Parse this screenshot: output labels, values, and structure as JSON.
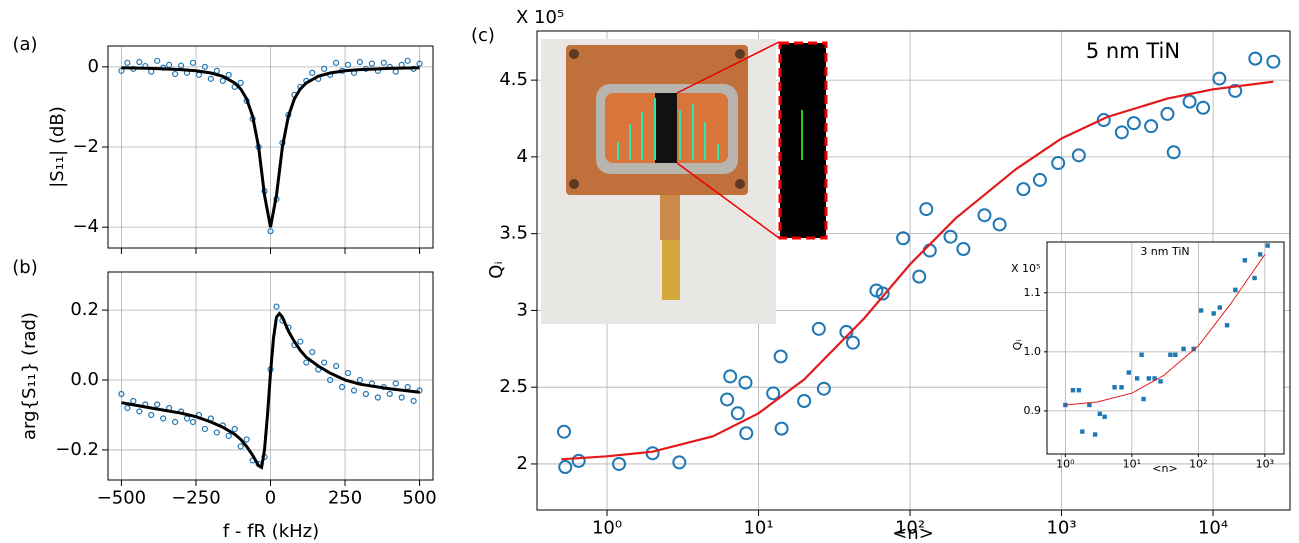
{
  "chart_data": [
    {
      "type": "scatter",
      "panel_label": "(a)",
      "ylabel": "|S₁₁| (dB)",
      "grid": true,
      "log_x": false,
      "show_xtick_labels": false,
      "xlim": [
        -545,
        545
      ],
      "ylim": [
        -4.52,
        0.52
      ],
      "xticks": [
        -500,
        -250,
        0,
        250,
        500
      ],
      "yticks": [
        {
          "value": -4,
          "label": "−4"
        },
        {
          "value": -2,
          "label": "−2"
        },
        0
      ],
      "series": [
        {
          "style": "markers",
          "color": "#1f77b4",
          "x": [
            -500,
            -480,
            -460,
            -440,
            -420,
            -400,
            -380,
            -360,
            -340,
            -320,
            -300,
            -280,
            -260,
            -240,
            -220,
            -200,
            -180,
            -160,
            -140,
            -120,
            -100,
            -80,
            -60,
            -40,
            -20,
            0,
            20,
            40,
            60,
            80,
            100,
            120,
            140,
            160,
            180,
            200,
            220,
            240,
            260,
            280,
            300,
            320,
            340,
            360,
            380,
            400,
            420,
            440,
            460,
            480,
            500
          ],
          "values": [
            -0.1,
            0.1,
            -0.05,
            0.12,
            0.02,
            -0.12,
            0.15,
            -0.02,
            0.05,
            -0.18,
            0.03,
            -0.15,
            0.1,
            -0.2,
            0.0,
            -0.3,
            -0.1,
            -0.35,
            -0.2,
            -0.5,
            -0.4,
            -0.85,
            -1.3,
            -2.0,
            -3.1,
            -4.1,
            -3.3,
            -1.9,
            -1.2,
            -0.7,
            -0.5,
            -0.35,
            -0.15,
            -0.3,
            -0.05,
            -0.2,
            0.1,
            -0.1,
            0.05,
            -0.15,
            0.12,
            -0.05,
            0.08,
            -0.1,
            0.1,
            0.0,
            -0.12,
            0.05,
            0.15,
            -0.05,
            0.08
          ]
        },
        {
          "style": "line",
          "color": "#000000",
          "x": [
            -500,
            -400,
            -300,
            -250,
            -200,
            -160,
            -120,
            -100,
            -80,
            -60,
            -40,
            -20,
            0,
            20,
            40,
            60,
            80,
            100,
            120,
            160,
            200,
            250,
            300,
            400,
            500
          ],
          "values": [
            -0.025,
            -0.04,
            -0.07,
            -0.1,
            -0.154,
            -0.235,
            -0.4,
            -0.55,
            -0.8,
            -1.23,
            -2.0,
            -3.2,
            -4.0,
            -3.2,
            -2.0,
            -1.23,
            -0.8,
            -0.55,
            -0.4,
            -0.235,
            -0.154,
            -0.1,
            -0.07,
            -0.04,
            -0.025
          ]
        }
      ]
    },
    {
      "type": "scatter",
      "panel_label": "(b)",
      "ylabel": "arg{S₁₁} (rad)",
      "xlabel": "f - fR (kHz)",
      "grid": true,
      "log_x": false,
      "xlim": [
        -545,
        545
      ],
      "ylim": [
        -0.286,
        0.309
      ],
      "xticks": [
        {
          "value": -500,
          "label": "−500"
        },
        {
          "value": -250,
          "label": "−250"
        },
        0,
        250,
        500
      ],
      "yticks": [
        {
          "value": -0.2,
          "label": "−0.2"
        },
        {
          "value": 0,
          "label": "0.0"
        },
        0.2
      ],
      "series": [
        {
          "style": "markers",
          "color": "#1f77b4",
          "x": [
            -500,
            -480,
            -460,
            -440,
            -420,
            -400,
            -380,
            -360,
            -340,
            -320,
            -300,
            -280,
            -260,
            -240,
            -220,
            -200,
            -180,
            -160,
            -140,
            -120,
            -100,
            -80,
            -60,
            -40,
            -20,
            0,
            20,
            40,
            60,
            80,
            100,
            120,
            140,
            160,
            180,
            200,
            220,
            240,
            260,
            280,
            300,
            320,
            340,
            360,
            380,
            400,
            420,
            440,
            460,
            480,
            500
          ],
          "values": [
            -0.04,
            -0.08,
            -0.06,
            -0.09,
            -0.07,
            -0.1,
            -0.07,
            -0.11,
            -0.08,
            -0.12,
            -0.09,
            -0.11,
            -0.12,
            -0.1,
            -0.14,
            -0.11,
            -0.15,
            -0.13,
            -0.16,
            -0.14,
            -0.19,
            -0.17,
            -0.23,
            -0.24,
            -0.22,
            0.03,
            0.21,
            0.17,
            0.15,
            0.1,
            0.11,
            0.05,
            0.08,
            0.03,
            0.05,
            0.0,
            0.04,
            -0.02,
            0.02,
            -0.03,
            0.0,
            -0.04,
            -0.01,
            -0.05,
            -0.02,
            -0.04,
            -0.01,
            -0.05,
            -0.02,
            -0.06,
            -0.03
          ]
        },
        {
          "style": "line",
          "color": "#000000",
          "x": [
            -500,
            -400,
            -300,
            -250,
            -200,
            -160,
            -120,
            -100,
            -80,
            -60,
            -40,
            -30,
            -20,
            -10,
            0,
            10,
            20,
            30,
            40,
            60,
            80,
            100,
            120,
            160,
            200,
            250,
            300,
            400,
            500
          ],
          "values": [
            -0.065,
            -0.08,
            -0.095,
            -0.105,
            -0.12,
            -0.135,
            -0.155,
            -0.17,
            -0.19,
            -0.215,
            -0.245,
            -0.25,
            -0.2,
            -0.1,
            0.02,
            0.12,
            0.18,
            0.19,
            0.18,
            0.14,
            0.11,
            0.085,
            0.065,
            0.04,
            0.02,
            0.0,
            -0.012,
            -0.025,
            -0.035
          ]
        }
      ]
    },
    {
      "type": "scatter",
      "panel_label": "(c)",
      "ylabel": "Qᵢ",
      "xlabel": "<n>",
      "y_multiplier": "X 10⁵",
      "annotation": "5 nm TiN",
      "grid": true,
      "log_x": true,
      "xlim": [
        0.345,
        32200
      ],
      "ylim": [
        1.7,
        4.82
      ],
      "xticks": [
        {
          "value": 1,
          "label": "10⁰"
        },
        {
          "value": 10,
          "label": "10¹"
        },
        {
          "value": 100,
          "label": "10²"
        },
        {
          "value": 1000,
          "label": "10³"
        },
        {
          "value": 10000,
          "label": "10⁴"
        }
      ],
      "yticks": [
        2,
        2.5,
        3,
        3.5,
        4,
        4.5
      ],
      "series": [
        {
          "style": "markers",
          "color": "#1f77b4",
          "x": [
            0.52,
            0.53,
            0.65,
            1.2,
            2.0,
            3.0,
            6.2,
            6.5,
            7.3,
            8.2,
            8.3,
            12.5,
            14,
            14.2,
            20,
            25,
            27,
            38,
            42,
            60,
            66,
            90,
            115,
            128,
            135,
            185,
            225,
            310,
            390,
            560,
            720,
            950,
            1300,
            1900,
            2500,
            3000,
            3900,
            5000,
            5500,
            7000,
            8600,
            11000,
            14000,
            19000,
            25000
          ],
          "values": [
            2.21,
            1.98,
            2.02,
            2.0,
            2.07,
            2.01,
            2.42,
            2.57,
            2.33,
            2.53,
            2.2,
            2.46,
            2.7,
            2.23,
            2.41,
            2.88,
            2.49,
            2.86,
            2.79,
            3.13,
            3.11,
            3.47,
            3.22,
            3.66,
            3.39,
            3.48,
            3.4,
            3.62,
            3.56,
            3.79,
            3.85,
            3.96,
            4.01,
            4.24,
            4.16,
            4.22,
            4.2,
            4.28,
            4.03,
            4.36,
            4.32,
            4.51,
            4.43,
            4.64,
            4.62
          ]
        },
        {
          "style": "line",
          "color": "#e31a1c",
          "x": [
            0.5,
            1,
            2,
            5,
            10,
            20,
            50,
            100,
            200,
            500,
            1000,
            2000,
            5000,
            10000,
            25000
          ],
          "values": [
            2.03,
            2.05,
            2.08,
            2.18,
            2.33,
            2.55,
            2.95,
            3.3,
            3.6,
            3.92,
            4.12,
            4.26,
            4.38,
            4.44,
            4.49
          ]
        }
      ]
    },
    {
      "type": "scatter",
      "ylabel": "Qᵢ",
      "xlabel": "<n>",
      "y_multiplier": "X 10⁵",
      "annotation": "3 nm TiN",
      "grid": true,
      "log_x": true,
      "xlim": [
        0.53,
        1940
      ],
      "ylim": [
        0.827,
        1.186
      ],
      "xticks": [
        {
          "value": 1,
          "label": "10⁰"
        },
        {
          "value": 10,
          "label": "10¹"
        },
        {
          "value": 100,
          "label": "10²"
        },
        {
          "value": 1000,
          "label": "10³"
        }
      ],
      "yticks": [
        0.9,
        {
          "value": 1,
          "label": "1.0"
        },
        1.1
      ],
      "series": [
        {
          "style": "squares",
          "color": "#1f77b4",
          "x": [
            1,
            1.3,
            1.6,
            1.8,
            2.3,
            2.8,
            3.3,
            3.9,
            5.5,
            7,
            9,
            12,
            14,
            15,
            18,
            22,
            27,
            38,
            45,
            60,
            85,
            110,
            170,
            210,
            270,
            360,
            500,
            700,
            850,
            1100
          ],
          "values": [
            0.91,
            0.935,
            0.935,
            0.865,
            0.91,
            0.86,
            0.895,
            0.89,
            0.94,
            0.94,
            0.965,
            0.955,
            0.995,
            0.92,
            0.955,
            0.955,
            0.95,
            0.995,
            0.995,
            1.005,
            1.005,
            1.07,
            1.065,
            1.075,
            1.045,
            1.105,
            1.155,
            1.125,
            1.165,
            1.18
          ]
        },
        {
          "style": "line",
          "color": "#e31a1c",
          "x": [
            1,
            3,
            10,
            30,
            100,
            300,
            1000
          ],
          "values": [
            0.91,
            0.915,
            0.93,
            0.96,
            1.01,
            1.08,
            1.165
          ]
        }
      ]
    }
  ]
}
